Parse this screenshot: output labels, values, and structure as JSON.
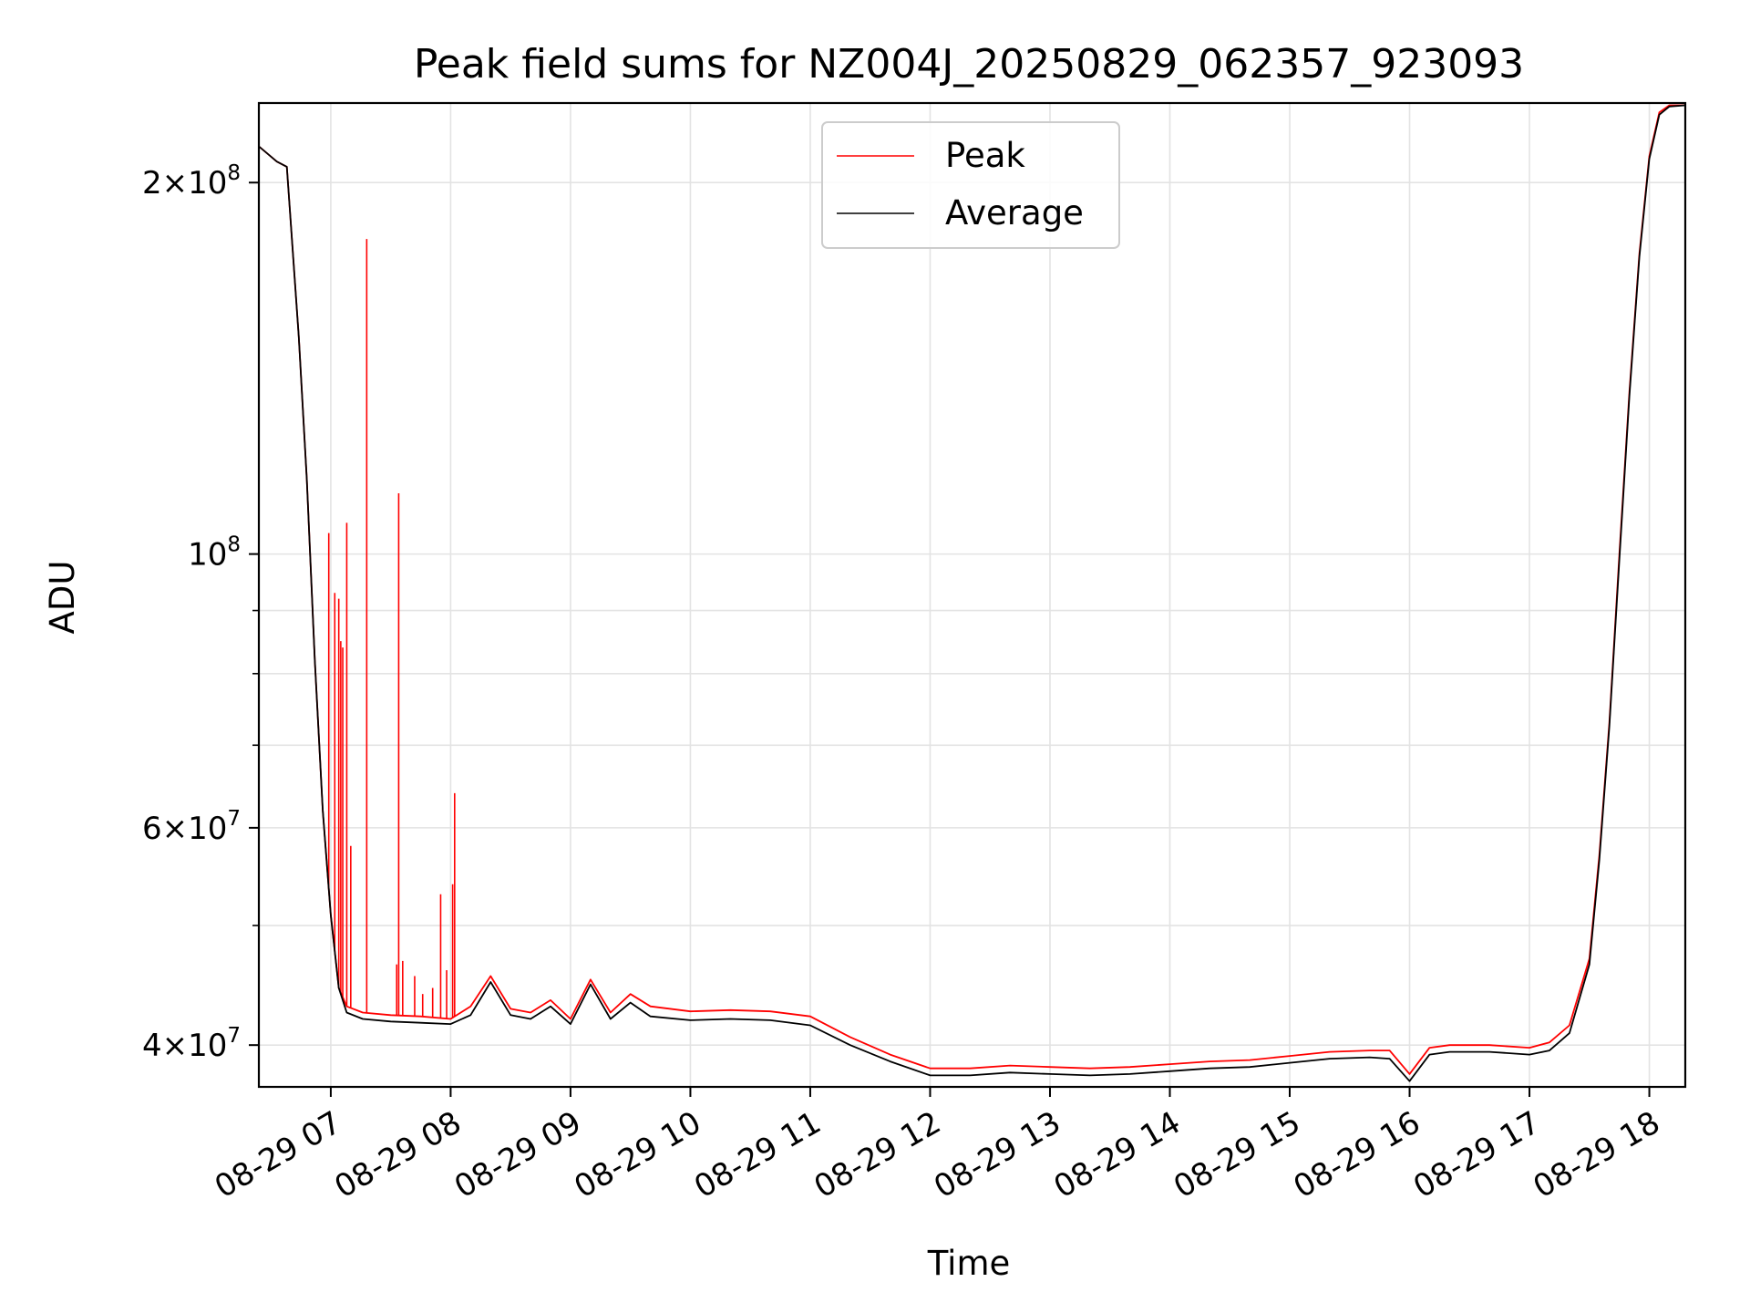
{
  "chart_data": {
    "type": "line",
    "title": "Peak field sums for NZ004J_20250829_062357_923093",
    "xlabel": "Time",
    "ylabel": "ADU",
    "yscale": "log",
    "ylim": [
      37000000,
      232000000
    ],
    "xlim": [
      "2025-08-29 06:24",
      "2025-08-29 18:18"
    ],
    "grid": true,
    "legend_position": "upper center",
    "x_ticks": [
      {
        "value": "2025-08-29 07:00",
        "label": "08-29 07"
      },
      {
        "value": "2025-08-29 08:00",
        "label": "08-29 08"
      },
      {
        "value": "2025-08-29 09:00",
        "label": "08-29 09"
      },
      {
        "value": "2025-08-29 10:00",
        "label": "08-29 10"
      },
      {
        "value": "2025-08-29 11:00",
        "label": "08-29 11"
      },
      {
        "value": "2025-08-29 12:00",
        "label": "08-29 12"
      },
      {
        "value": "2025-08-29 13:00",
        "label": "08-29 13"
      },
      {
        "value": "2025-08-29 14:00",
        "label": "08-29 14"
      },
      {
        "value": "2025-08-29 15:00",
        "label": "08-29 15"
      },
      {
        "value": "2025-08-29 16:00",
        "label": "08-29 16"
      },
      {
        "value": "2025-08-29 17:00",
        "label": "08-29 17"
      },
      {
        "value": "2025-08-29 18:00",
        "label": "08-29 18"
      }
    ],
    "y_major_ticks": [
      {
        "value": 40000000,
        "mantissa": "4",
        "exponent": "7"
      },
      {
        "value": 60000000,
        "mantissa": "6",
        "exponent": "7"
      },
      {
        "value": 100000000,
        "mantissa": "",
        "exponent": "8"
      },
      {
        "value": 200000000,
        "mantissa": "2",
        "exponent": "8"
      }
    ],
    "y_minor_ticks": [
      50000000,
      70000000,
      80000000,
      90000000
    ],
    "series": [
      {
        "name": "Peak",
        "color": "#ff0000",
        "x": [
          "06:24",
          "06:33",
          "06:38",
          "06:44",
          "06:48",
          "06:52",
          "06:56",
          "07:00",
          "07:04",
          "07:08",
          "07:16",
          "07:30",
          "07:45",
          "08:00",
          "08:10",
          "08:20",
          "08:30",
          "08:40",
          "08:50",
          "09:00",
          "09:10",
          "09:20",
          "09:30",
          "09:40",
          "10:00",
          "10:20",
          "10:40",
          "11:00",
          "11:20",
          "11:40",
          "12:00",
          "12:20",
          "12:40",
          "13:00",
          "13:20",
          "13:40",
          "14:00",
          "14:20",
          "14:40",
          "15:00",
          "15:20",
          "15:40",
          "15:50",
          "16:00",
          "16:10",
          "16:20",
          "16:40",
          "17:00",
          "17:10",
          "17:20",
          "17:30",
          "17:35",
          "17:40",
          "17:45",
          "17:50",
          "17:55",
          "18:00",
          "18:05",
          "18:10",
          "18:18"
        ],
        "y": [
          214000000,
          208000000,
          206000000,
          150000000,
          115000000,
          82000000,
          62000000,
          51000000,
          44500000,
          43000000,
          42500000,
          42300000,
          42200000,
          42000000,
          43000000,
          45500000,
          42800000,
          42500000,
          43500000,
          42000000,
          45200000,
          42500000,
          44000000,
          43000000,
          42600000,
          42700000,
          42600000,
          42200000,
          40600000,
          39300000,
          38300000,
          38300000,
          38500000,
          38400000,
          38300000,
          38400000,
          38600000,
          38800000,
          38900000,
          39200000,
          39500000,
          39600000,
          39600000,
          37900000,
          39800000,
          40000000,
          40000000,
          39800000,
          40200000,
          41500000,
          47000000,
          57000000,
          73000000,
          100000000,
          135000000,
          175000000,
          210000000,
          228000000,
          231000000,
          231000000
        ],
        "spikes": [
          {
            "x": "06:59",
            "y": 104000000
          },
          {
            "x": "07:02",
            "y": 93000000
          },
          {
            "x": "07:04",
            "y": 92000000
          },
          {
            "x": "07:05",
            "y": 85000000
          },
          {
            "x": "07:06",
            "y": 84000000
          },
          {
            "x": "07:08",
            "y": 106000000
          },
          {
            "x": "07:10",
            "y": 58000000
          },
          {
            "x": "07:18",
            "y": 180000000
          },
          {
            "x": "07:33",
            "y": 46500000
          },
          {
            "x": "07:34",
            "y": 112000000
          },
          {
            "x": "07:36",
            "y": 46800000
          },
          {
            "x": "07:42",
            "y": 45500000
          },
          {
            "x": "07:46",
            "y": 44000000
          },
          {
            "x": "07:51",
            "y": 44500000
          },
          {
            "x": "07:55",
            "y": 53000000
          },
          {
            "x": "07:58",
            "y": 46000000
          },
          {
            "x": "08:01",
            "y": 54000000
          },
          {
            "x": "08:02",
            "y": 64000000
          }
        ]
      },
      {
        "name": "Average",
        "color": "#000000",
        "x": [
          "06:24",
          "06:33",
          "06:38",
          "06:44",
          "06:48",
          "06:52",
          "06:56",
          "07:00",
          "07:04",
          "07:08",
          "07:16",
          "07:30",
          "07:45",
          "08:00",
          "08:10",
          "08:20",
          "08:30",
          "08:40",
          "08:50",
          "09:00",
          "09:10",
          "09:20",
          "09:30",
          "09:40",
          "10:00",
          "10:20",
          "10:40",
          "11:00",
          "11:20",
          "11:40",
          "12:00",
          "12:20",
          "12:40",
          "13:00",
          "13:20",
          "13:40",
          "14:00",
          "14:20",
          "14:40",
          "15:00",
          "15:20",
          "15:40",
          "15:50",
          "16:00",
          "16:10",
          "16:20",
          "16:40",
          "17:00",
          "17:10",
          "17:20",
          "17:30",
          "17:35",
          "17:40",
          "17:45",
          "17:50",
          "17:55",
          "18:00",
          "18:05",
          "18:10",
          "18:18"
        ],
        "y": [
          214000000,
          208000000,
          206000000,
          150000000,
          115000000,
          82000000,
          62000000,
          51000000,
          44500000,
          42500000,
          42000000,
          41800000,
          41700000,
          41600000,
          42300000,
          45000000,
          42300000,
          42000000,
          43000000,
          41600000,
          44800000,
          42000000,
          43300000,
          42200000,
          41900000,
          42000000,
          41900000,
          41500000,
          40000000,
          38800000,
          37800000,
          37800000,
          38000000,
          37900000,
          37800000,
          37900000,
          38100000,
          38300000,
          38400000,
          38700000,
          39000000,
          39100000,
          39000000,
          37400000,
          39300000,
          39500000,
          39500000,
          39300000,
          39600000,
          40900000,
          46500000,
          56500000,
          72500000,
          99000000,
          134000000,
          174000000,
          209000000,
          227000000,
          230500000,
          231000000
        ]
      }
    ]
  }
}
